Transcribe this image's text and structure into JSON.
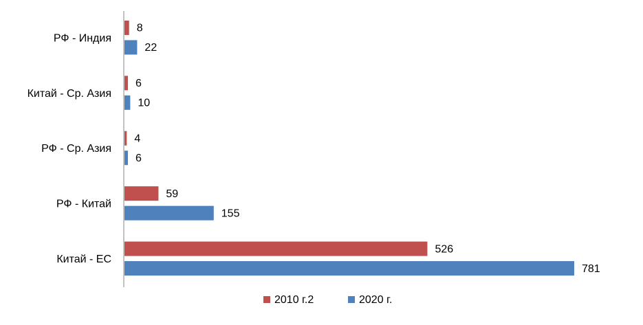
{
  "chart_data": {
    "type": "bar",
    "orientation": "horizontal",
    "categories": [
      "РФ - Индия",
      "Китай - Ср. Азия",
      "РФ - Ср. Азия",
      "РФ - Китай",
      "Китай - ЕС"
    ],
    "series": [
      {
        "name": "2010 г.2",
        "color": "#C0504D",
        "values": [
          8,
          6,
          4,
          59,
          526
        ]
      },
      {
        "name": "2020 г.",
        "color": "#4F81BD",
        "values": [
          22,
          10,
          6,
          155,
          781
        ]
      }
    ],
    "xlim": [
      0,
      781
    ],
    "grid": false,
    "legend_position": "bottom-center",
    "data_labels": true
  }
}
